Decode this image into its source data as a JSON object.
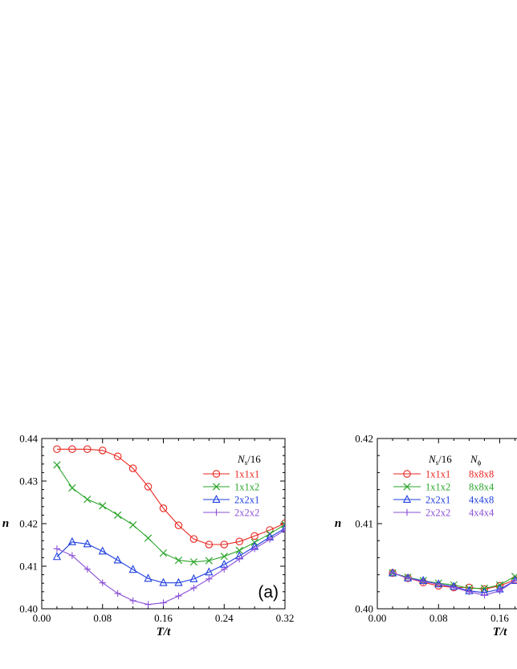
{
  "chart_data": [
    {
      "type": "line",
      "panel_label": "(a)",
      "xlabel": "T/t",
      "ylabel": "n",
      "xlim": [
        0.0,
        0.32
      ],
      "ylim": [
        0.4,
        0.44
      ],
      "xticks": [
        "0.00",
        "0.08",
        "0.16",
        "0.24",
        "0.32"
      ],
      "yticks": [
        "0.40",
        "0.41",
        "0.42",
        "0.43",
        "0.44"
      ],
      "legend_title": "N_s/16",
      "legend_title_main": "N",
      "legend_title_sub": "s",
      "legend_title_rest": "/16",
      "legend_position": "top-right",
      "series": [
        {
          "name": "1x1x1",
          "color": "#e8251f",
          "marker": "circle",
          "x": [
            0.02,
            0.04,
            0.06,
            0.08,
            0.1,
            0.12,
            0.14,
            0.16,
            0.18,
            0.2,
            0.22,
            0.24,
            0.26,
            0.28,
            0.3,
            0.32
          ],
          "y": [
            0.4375,
            0.4375,
            0.4375,
            0.4372,
            0.4358,
            0.433,
            0.4287,
            0.4236,
            0.4196,
            0.4164,
            0.4151,
            0.4151,
            0.4158,
            0.4171,
            0.4185,
            0.4201
          ]
        },
        {
          "name": "1x1x2",
          "color": "#2aa52a",
          "marker": "x",
          "x": [
            0.02,
            0.04,
            0.06,
            0.08,
            0.1,
            0.12,
            0.14,
            0.16,
            0.18,
            0.2,
            0.22,
            0.24,
            0.26,
            0.28,
            0.3,
            0.32
          ],
          "y": [
            0.4338,
            0.4284,
            0.4257,
            0.4242,
            0.422,
            0.4197,
            0.4166,
            0.4131,
            0.4114,
            0.411,
            0.4113,
            0.4123,
            0.4137,
            0.4156,
            0.4176,
            0.4198
          ]
        },
        {
          "name": "2x2x1",
          "color": "#1f3fe0",
          "marker": "triangle",
          "x": [
            0.02,
            0.04,
            0.06,
            0.08,
            0.1,
            0.12,
            0.14,
            0.16,
            0.18,
            0.2,
            0.22,
            0.24,
            0.26,
            0.28,
            0.3,
            0.32
          ],
          "y": [
            0.4122,
            0.4157,
            0.4152,
            0.4135,
            0.4114,
            0.4092,
            0.4071,
            0.4061,
            0.4061,
            0.407,
            0.4086,
            0.4104,
            0.4124,
            0.4146,
            0.4168,
            0.4189
          ]
        },
        {
          "name": "2x2x2",
          "color": "#8a4fd8",
          "marker": "plus",
          "x": [
            0.02,
            0.04,
            0.06,
            0.08,
            0.1,
            0.12,
            0.14,
            0.16,
            0.18,
            0.2,
            0.22,
            0.24,
            0.26,
            0.28,
            0.3,
            0.32
          ],
          "y": [
            0.4141,
            0.4125,
            0.4093,
            0.4061,
            0.4036,
            0.4019,
            0.401,
            0.4014,
            0.403,
            0.4049,
            0.407,
            0.4093,
            0.4117,
            0.4141,
            0.4163,
            0.4185
          ]
        }
      ]
    },
    {
      "type": "line",
      "panel_label": "",
      "xlabel": "T/t",
      "ylabel": "n",
      "xlim": [
        0.0,
        0.32
      ],
      "ylim": [
        0.4,
        0.42
      ],
      "xticks": [
        "0.00",
        "0.08",
        "0.16"
      ],
      "yticks": [
        "0.40",
        "0.41",
        "0.42"
      ],
      "legend_title": "N_s/16   N_phi",
      "legend_title_main": "N",
      "legend_title_sub": "s",
      "legend_title_rest": "/16",
      "legend_title2_main": "N",
      "legend_title2_sub": "ϕ",
      "legend_position": "top-left",
      "series": [
        {
          "name": "1x1x1",
          "nphi": "8x8x8",
          "color": "#e8251f",
          "marker": "circle",
          "x": [
            0.02,
            0.04,
            0.06,
            0.08,
            0.1,
            0.12,
            0.14,
            0.16,
            0.18
          ],
          "y": [
            0.4042,
            0.4036,
            0.4031,
            0.4027,
            0.4025,
            0.4025,
            0.4023,
            0.4027,
            0.4034
          ]
        },
        {
          "name": "1x1x2",
          "nphi": "8x8x4",
          "color": "#2aa52a",
          "marker": "x",
          "x": [
            0.02,
            0.04,
            0.06,
            0.08,
            0.1,
            0.12,
            0.14,
            0.16,
            0.18
          ],
          "y": [
            0.4042,
            0.4037,
            0.4033,
            0.403,
            0.4028,
            0.4024,
            0.4024,
            0.4028,
            0.4038
          ]
        },
        {
          "name": "2x2x1",
          "nphi": "4x4x8",
          "color": "#1f3fe0",
          "marker": "triangle",
          "x": [
            0.02,
            0.04,
            0.06,
            0.08,
            0.1,
            0.12,
            0.14,
            0.16,
            0.18
          ],
          "y": [
            0.4042,
            0.4036,
            0.4033,
            0.4029,
            0.4026,
            0.4021,
            0.4019,
            0.4023,
            0.4033
          ]
        },
        {
          "name": "2x2x2",
          "nphi": "4x4x4",
          "color": "#8a4fd8",
          "marker": "plus",
          "x": [
            0.02,
            0.04,
            0.06,
            0.08,
            0.1,
            0.12,
            0.14,
            0.16,
            0.18
          ],
          "y": [
            0.4042,
            0.4036,
            0.4032,
            0.4029,
            0.4025,
            0.402,
            0.4016,
            0.4021,
            0.4033
          ]
        }
      ]
    }
  ]
}
